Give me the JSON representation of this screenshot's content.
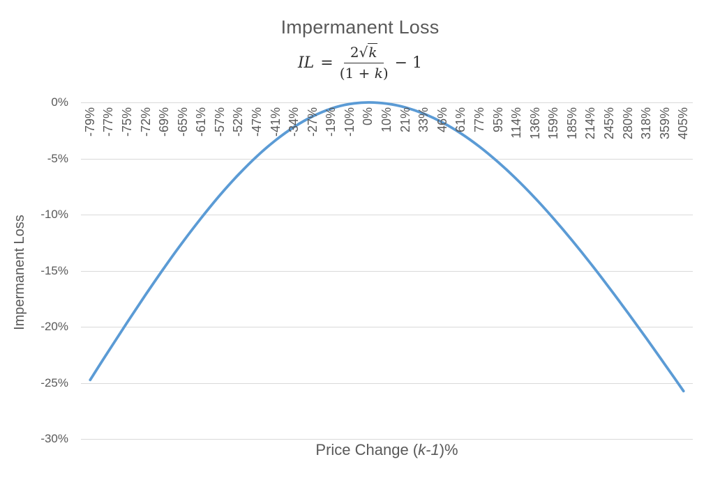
{
  "chart": {
    "title": "Impermanent Loss",
    "formula": {
      "lhs_var": "IL",
      "equals": "=",
      "numerator_coeff": "2",
      "radical_sign": "√",
      "radicand": "k",
      "denominator_open": "(1 + ",
      "denominator_var": "k",
      "denominator_close": ")",
      "tail": "− 1"
    },
    "x_axis_title": {
      "prefix": "Price Change (",
      "variable": "k-1",
      "suffix": ")%"
    },
    "y_axis_title": "Impermanent Loss"
  },
  "chart_data": {
    "type": "line",
    "title": "Impermanent Loss",
    "subtitle_formula": "IL = 2√k/(1+k) − 1",
    "xlabel": "Price Change (k-1)%",
    "ylabel": "Impermanent Loss",
    "categories": [
      "-79%",
      "-77%",
      "-75%",
      "-72%",
      "-69%",
      "-65%",
      "-61%",
      "-57%",
      "-52%",
      "-47%",
      "-41%",
      "-34%",
      "-27%",
      "-19%",
      "-10%",
      "0%",
      "10%",
      "21%",
      "33%",
      "46%",
      "61%",
      "77%",
      "95%",
      "114%",
      "136%",
      "159%",
      "185%",
      "214%",
      "245%",
      "280%",
      "318%",
      "359%",
      "405%"
    ],
    "series": [
      {
        "name": "Impermanent Loss",
        "values": [
          -24.74,
          -22.14,
          -19.6,
          -17.12,
          -14.72,
          -12.43,
          -10.28,
          -8.26,
          -6.43,
          -4.79,
          -3.37,
          -2.18,
          -1.24,
          -0.55,
          -0.14,
          0,
          -0.11,
          -0.45,
          -1.01,
          -1.79,
          -2.77,
          -3.95,
          -5.32,
          -6.85,
          -8.54,
          -10.37,
          -12.32,
          -14.38,
          -16.54,
          -18.76,
          -21.04,
          -23.37,
          -25.73
        ]
      }
    ],
    "y_tick_labels": [
      "0%",
      "-5%",
      "-10%",
      "-15%",
      "-20%",
      "-25%",
      "-30%"
    ],
    "y_tick_values": [
      0,
      -5,
      -10,
      -15,
      -20,
      -25,
      -30
    ],
    "ylim": [
      -30,
      0
    ],
    "grid": true,
    "legend": "none",
    "smooth": true,
    "line_color": "#5B9BD5",
    "gridline_color": "#D9D9D9",
    "text_color": "#595959"
  }
}
